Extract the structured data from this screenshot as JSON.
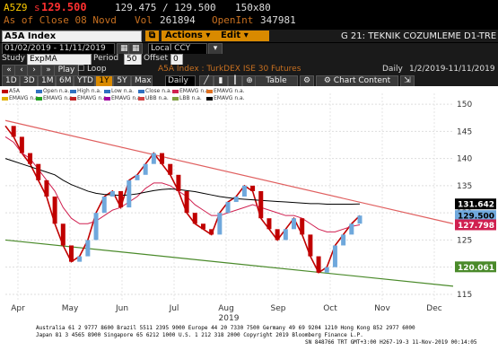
{
  "quote": {
    "ticker": "A5Z9",
    "last_prefix": "s",
    "last": "129.500",
    "bid_ask": "129.475 / 129.500",
    "size": "150x80",
    "as_of": "As of Close 08 Novd",
    "vol_label": "Vol",
    "vol": "261894",
    "oi_label": "OpenInt",
    "oi": "347981"
  },
  "toolbar1": {
    "security": "A5A  Index",
    "actions": "Actions",
    "edit": "Edit",
    "screen_title": "G 21: TEKNIK COZUMLEME D1-TRE"
  },
  "toolbar2": {
    "date_range": "01/02/2019 - 11/11/2019",
    "ccy": "Local CCY"
  },
  "toolbar3": {
    "study_label": "Study",
    "study_value": "ExpMA",
    "period_label": "Period",
    "period_value": "50",
    "offset_label": "Offset",
    "offset_value": "0"
  },
  "toolbar4": {
    "play": "Play",
    "loop": "Loop",
    "chart_desc": "A5A  Index : TurkDEX ISE 30 Futures",
    "freq": "Daily",
    "range": "1/2/2019-11/11/2019"
  },
  "toolbar5": {
    "buttons": [
      "1D",
      "3D",
      "1M",
      "6M",
      "YTD",
      "1Y",
      "5Y",
      "Max"
    ],
    "active": "1Y",
    "period_select": "Daily",
    "table": "Table",
    "chart_content": "Chart Content"
  },
  "legend": [
    {
      "label": "A5A",
      "color": "#c00000"
    },
    {
      "label": "Open n.a.",
      "color": "#3070c0"
    },
    {
      "label": "High n.a.",
      "color": "#3070c0"
    },
    {
      "label": "Low n.a.",
      "color": "#3070c0"
    },
    {
      "label": "Close n.a.",
      "color": "#3070c0"
    },
    {
      "label": "EMAVG n.a.",
      "color": "#d02050"
    },
    {
      "label": "EMAVG n.a.",
      "color": "#e07020"
    },
    {
      "label": "EMAVG n.a.",
      "color": "#e0b000"
    },
    {
      "label": "EMAVG n.a.",
      "color": "#20a020"
    },
    {
      "label": "EMAVG n.a.",
      "color": "#c02020"
    },
    {
      "label": "EMAVG n.a.",
      "color": "#a000a0"
    },
    {
      "label": "UBB n.a.",
      "color": "#d04040"
    },
    {
      "label": "LBB n.a.",
      "color": "#80a040"
    },
    {
      "label": "EMAVG n.a.",
      "color": "#000000"
    }
  ],
  "chart_data": {
    "type": "line",
    "title": "",
    "xlabel": "2019",
    "ylabel": "",
    "x_ticks": [
      "Apr",
      "May",
      "Jun",
      "Jul",
      "Aug",
      "Sep",
      "Oct",
      "Nov",
      "Dec"
    ],
    "y_ticks": [
      115,
      120,
      125,
      130,
      135,
      140,
      145,
      150
    ],
    "ylim": [
      114,
      152
    ],
    "grid": true,
    "price_labels": [
      {
        "value": "131.642",
        "color": "#000000",
        "text_color": "#ffffff"
      },
      {
        "value": "129.500",
        "color": "#6fa8dc",
        "text_color": "#000000"
      },
      {
        "value": "127.798",
        "color": "#d02050",
        "text_color": "#ffffff"
      },
      {
        "value": "120.061",
        "color": "#4a8a2a",
        "text_color": "#ffffff"
      }
    ],
    "series": [
      {
        "name": "A5A",
        "values": [
          146,
          144,
          141,
          139,
          136,
          133,
          128,
          124,
          121,
          122,
          125,
          130,
          133,
          134,
          131,
          136,
          137,
          139,
          141,
          139,
          137,
          134,
          130,
          128,
          127,
          126,
          130,
          132,
          133,
          135,
          134,
          129,
          127,
          125,
          127,
          129,
          126,
          122,
          119,
          120,
          124,
          126,
          128,
          129.5
        ]
      },
      {
        "name": "EMAVG",
        "values": [
          144,
          143,
          141,
          140,
          138,
          136,
          134,
          131,
          129,
          128,
          128,
          128.5,
          129.5,
          130.5,
          131,
          132,
          133,
          134.5,
          135.5,
          135.5,
          135,
          134,
          133,
          131.5,
          130.5,
          129.5,
          129.5,
          130,
          130.5,
          131,
          131.5,
          131,
          130.5,
          130,
          129.5,
          129.5,
          129,
          128,
          127,
          126.5,
          126.5,
          127,
          127.5,
          127.8
        ]
      },
      {
        "name": "EMAVG",
        "values": [
          140,
          139.5,
          139,
          138.5,
          138,
          137.5,
          137,
          136,
          135.2,
          134.6,
          134,
          133.6,
          133.4,
          133.3,
          133.2,
          133.3,
          133.5,
          133.8,
          134.1,
          134.3,
          134.4,
          134.3,
          134.1,
          133.9,
          133.6,
          133.3,
          133,
          132.8,
          132.6,
          132.5,
          132.4,
          132.3,
          132.2,
          132.1,
          132,
          131.9,
          131.8,
          131.7,
          131.7,
          131.6,
          131.6,
          131.6,
          131.6,
          131.642
        ]
      }
    ],
    "trendlines": [
      {
        "name": "upper",
        "from": [
          0,
          147
        ],
        "to": [
          43,
          128
        ]
      },
      {
        "name": "lower",
        "from": [
          0,
          125
        ],
        "to": [
          43,
          116.5
        ]
      }
    ]
  },
  "footer": {
    "line1": "Australia 61 2 9777 8600 Brazil 5511 2395 9000 Europe 44 20 7330 7500 Germany 49 69 9204 1210 Hong Kong 852 2977 6000",
    "line2": "Japan 81 3 4565 8900       Singapore 65 6212 1000       U.S. 1 212 318 2000       Copyright 2019 Bloomberg Finance L.P.",
    "line3": "SN 848766 TRT  GMT+3:00 H267-19-3 11-Nov-2019 00:14:05"
  }
}
